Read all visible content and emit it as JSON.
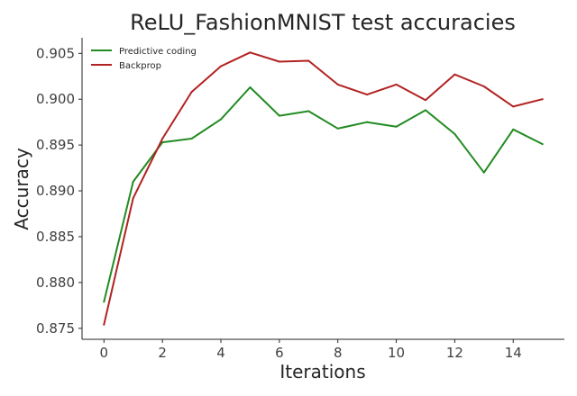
{
  "chart_data": {
    "type": "line",
    "title": "ReLU_FashionMNIST test accuracies",
    "xlabel": "Iterations",
    "ylabel": "Accuracy",
    "x": [
      0,
      1,
      2,
      3,
      4,
      5,
      6,
      7,
      8,
      9,
      10,
      11,
      12,
      13,
      14,
      15
    ],
    "xlim": [
      -0.75,
      15.75
    ],
    "ylim": [
      0.8738,
      0.9067
    ],
    "xticks": [
      0,
      2,
      4,
      6,
      8,
      10,
      12,
      14
    ],
    "xtick_labels": [
      "0",
      "2",
      "4",
      "6",
      "8",
      "10",
      "12",
      "14"
    ],
    "yticks": [
      0.875,
      0.88,
      0.885,
      0.89,
      0.895,
      0.9,
      0.905
    ],
    "ytick_labels": [
      "0.875",
      "0.880",
      "0.885",
      "0.890",
      "0.895",
      "0.900",
      "0.905"
    ],
    "grid": false,
    "legend_position": "top-left",
    "series": [
      {
        "name": "Predictive coding",
        "color": "#228b22",
        "values": [
          0.8779,
          0.891,
          0.8953,
          0.8957,
          0.8978,
          0.9013,
          0.8982,
          0.8987,
          0.8968,
          0.8975,
          0.897,
          0.8988,
          0.8962,
          0.892,
          0.8967,
          0.8951
        ]
      },
      {
        "name": "Backprop",
        "color": "#b22222",
        "values": [
          0.8754,
          0.8892,
          0.8957,
          0.9008,
          0.9036,
          0.9051,
          0.9041,
          0.9042,
          0.9016,
          0.9005,
          0.9016,
          0.8999,
          0.9027,
          0.9014,
          0.8992,
          0.9
        ]
      }
    ]
  }
}
